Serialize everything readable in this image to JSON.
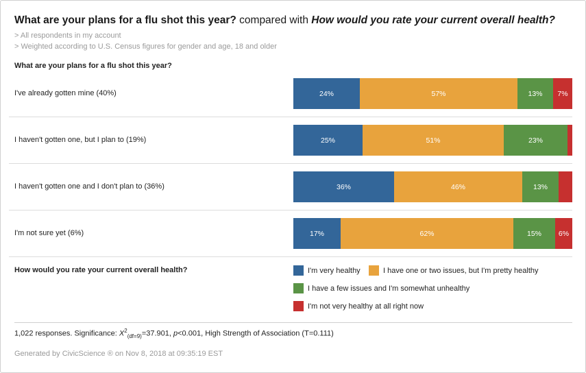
{
  "header": {
    "title_q1": "What are your plans for a flu shot this year?",
    "title_mid": "compared with",
    "title_q2": "How would you rate your current overall health?",
    "notes": [
      "> All respondents in my account",
      "> Weighted according to U.S. Census figures for gender and age, 18 and older"
    ]
  },
  "chart_data": {
    "type": "bar",
    "orientation": "horizontal",
    "stacked": true,
    "percent_stacked": true,
    "row_question": "What are your plans for a flu shot this year?",
    "legend_question": "How would you rate your current overall health?",
    "categories": [
      "I've already gotten mine (40%)",
      "I haven't gotten one, but I plan to (19%)",
      "I haven't gotten one and I don't plan to (36%)",
      "I'm not sure yet (6%)"
    ],
    "series": [
      {
        "name": "I'm very healthy",
        "color": "#336699",
        "values": [
          24,
          25,
          36,
          17
        ],
        "labels": [
          "24%",
          "25%",
          "36%",
          "17%"
        ]
      },
      {
        "name": "I have one or two issues, but I'm pretty healthy",
        "color": "#E8A33D",
        "values": [
          57,
          51,
          46,
          62
        ],
        "labels": [
          "57%",
          "51%",
          "46%",
          "62%"
        ]
      },
      {
        "name": "I have a few issues and I'm somewhat unhealthy",
        "color": "#5A9446",
        "values": [
          13,
          23,
          13,
          15
        ],
        "labels": [
          "13%",
          "23%",
          "13%",
          "15%"
        ]
      },
      {
        "name": "I'm not very healthy at all right now",
        "color": "#C6302F",
        "values": [
          7,
          2,
          5,
          6
        ],
        "labels": [
          "7%",
          "",
          "",
          "6%"
        ]
      }
    ]
  },
  "footer": {
    "responses": "1,022 responses. Significance:",
    "chi": "X",
    "chi_sup": "2",
    "chi_sub": "(df=9)",
    "stat_rest_1": "=37.901,",
    "p_label": "p",
    "stat_rest_2": "<0.001, High Strength of Association (T=0.111)",
    "generated": "Generated by CivicScience ® on Nov 8, 2018 at 09:35:19 EST"
  }
}
